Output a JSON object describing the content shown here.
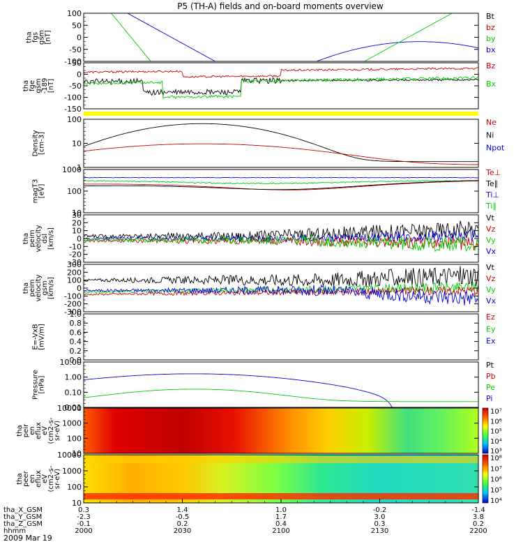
{
  "title": "P5 (TH-A) fields and on-board moments overview",
  "date": "2009 Mar 19",
  "colors": {
    "black": "#000000",
    "red": "#c80000",
    "green": "#00cc00",
    "blue": "#0000dd",
    "yellow": "#ffff00"
  },
  "chart_data": [
    {
      "type": "line",
      "id": "fgs",
      "ylabel": [
        "tha",
        "fgs",
        "gsm",
        "[nT]"
      ],
      "ylim": [
        -100,
        100
      ],
      "ticks": [
        "100",
        "50",
        "0",
        "-50",
        "-100"
      ],
      "legend": [
        {
          "name": "Bt",
          "color": "black"
        },
        {
          "name": "bz",
          "color": "red"
        },
        {
          "name": "by",
          "color": "green"
        },
        {
          "name": "bx",
          "color": "blue"
        }
      ]
    },
    {
      "type": "line",
      "id": "fge",
      "ylabel": [
        "tha",
        "fge",
        "gsm",
        "-189",
        "[nT]"
      ],
      "ylim": [
        -175,
        70
      ],
      "ticks": [
        "50",
        "0",
        "-50",
        "-100",
        "-150"
      ],
      "legend": [
        {
          "name": "Bz",
          "color": "red"
        },
        {
          "name": "Bx",
          "color": "green"
        }
      ]
    },
    {
      "type": "line",
      "id": "density",
      "ylabel": [
        "Density",
        "[cm-3]"
      ],
      "yscale": "log",
      "ylim": [
        0.1,
        200
      ],
      "ticks": [
        "100",
        "10",
        "1"
      ],
      "legend": [
        {
          "name": "Ne",
          "color": "red"
        },
        {
          "name": "Ni",
          "color": "black"
        },
        {
          "name": "Npot",
          "color": "blue"
        }
      ]
    },
    {
      "type": "line",
      "id": "temp",
      "ylabel": [
        "magT3",
        "[eV]"
      ],
      "yscale": "log",
      "ylim": [
        10,
        1000
      ],
      "ticks": [
        "1000",
        "100",
        "10"
      ],
      "legend": [
        {
          "name": "Te⊥",
          "color": "red"
        },
        {
          "name": "Te∥",
          "color": "black"
        },
        {
          "name": "Ti⊥",
          "color": "blue"
        },
        {
          "name": "Ti∥",
          "color": "green"
        }
      ]
    },
    {
      "type": "line",
      "id": "veff",
      "ylabel": [
        "tha",
        "peim",
        "velocity",
        "dsl",
        "[km/s]"
      ],
      "ylim": [
        -30,
        30
      ],
      "ticks": [
        "30",
        "20",
        "10",
        "0",
        "-10",
        "-20",
        "-30"
      ],
      "legend": [
        {
          "name": "Vt",
          "color": "black"
        },
        {
          "name": "Vz",
          "color": "red"
        },
        {
          "name": "Vy",
          "color": "green"
        },
        {
          "name": "Vx",
          "color": "blue"
        }
      ]
    },
    {
      "type": "line",
      "id": "vgsm",
      "ylabel": [
        "tha",
        "peim",
        "velocity",
        "gsm",
        "[km/s]"
      ],
      "ylim": [
        -300,
        300
      ],
      "ticks": [
        "300",
        "200",
        "100",
        "0",
        "-100",
        "-200",
        "-300"
      ],
      "legend": [
        {
          "name": "Vt",
          "color": "black"
        },
        {
          "name": "Vz",
          "color": "red"
        },
        {
          "name": "Vy",
          "color": "green"
        },
        {
          "name": "Vx",
          "color": "blue"
        }
      ]
    },
    {
      "type": "line",
      "id": "exb",
      "ylabel": [
        "E=-VxB",
        "[mV/m]"
      ],
      "ylim": [
        0,
        1
      ],
      "ticks": [
        "1.0",
        "0.8",
        "0.6",
        "0.4",
        "0.2",
        "0.0"
      ],
      "legend": [
        {
          "name": "Ez",
          "color": "red"
        },
        {
          "name": "Ey",
          "color": "green"
        },
        {
          "name": "Ex",
          "color": "blue"
        }
      ]
    },
    {
      "type": "line",
      "id": "pressure",
      "ylabel": [
        "Pressure",
        "[nPa]"
      ],
      "yscale": "log",
      "ylim": [
        0.005,
        30
      ],
      "ticks": [
        "10.00",
        "1.00",
        "0.10",
        "0.01"
      ],
      "legend": [
        {
          "name": "Pt",
          "color": "black"
        },
        {
          "name": "Pb",
          "color": "red"
        },
        {
          "name": "Pe",
          "color": "green"
        },
        {
          "name": "Pi",
          "color": "blue"
        }
      ]
    },
    {
      "type": "heatmap",
      "id": "peir",
      "ylabel": [
        "tha",
        "peir",
        "en",
        "eflux",
        "eV",
        "(cm2-s-",
        "sr-eV)"
      ],
      "yscale": "log",
      "ylim": [
        7,
        30000
      ],
      "ticks": [
        "10000",
        "1000",
        "100",
        "10"
      ],
      "colorbar": [
        "10⁷",
        "10⁶",
        "10⁵",
        "10⁴",
        "10³"
      ]
    },
    {
      "type": "heatmap",
      "id": "peer",
      "ylabel": [
        "tha",
        "peer",
        "en",
        "eflux",
        "eV",
        "(cm2-s-",
        "sr-eV)"
      ],
      "yscale": "log",
      "ylim": [
        7,
        30000
      ],
      "ticks": [
        "10000",
        "1000",
        "100",
        "10"
      ],
      "colorbar": [
        "10⁸",
        "10⁷",
        "10⁶",
        "10⁵",
        "10⁴"
      ]
    }
  ],
  "xaxis": {
    "rows": [
      {
        "label": "tha_X_GSM",
        "values": [
          "0.3",
          "1.4",
          "1.0",
          "-0.2",
          "-1.4"
        ]
      },
      {
        "label": "tha_Y_GSM",
        "values": [
          "-2.3",
          "-0.5",
          "1.7",
          "3.0",
          "3.8"
        ]
      },
      {
        "label": "tha_Z_GSM",
        "values": [
          "-0.1",
          "0.2",
          "0.4",
          "0.3",
          "0.2"
        ]
      },
      {
        "label": "hhmm",
        "values": [
          "2000",
          "2030",
          "2100",
          "2130",
          "2200"
        ]
      }
    ]
  }
}
